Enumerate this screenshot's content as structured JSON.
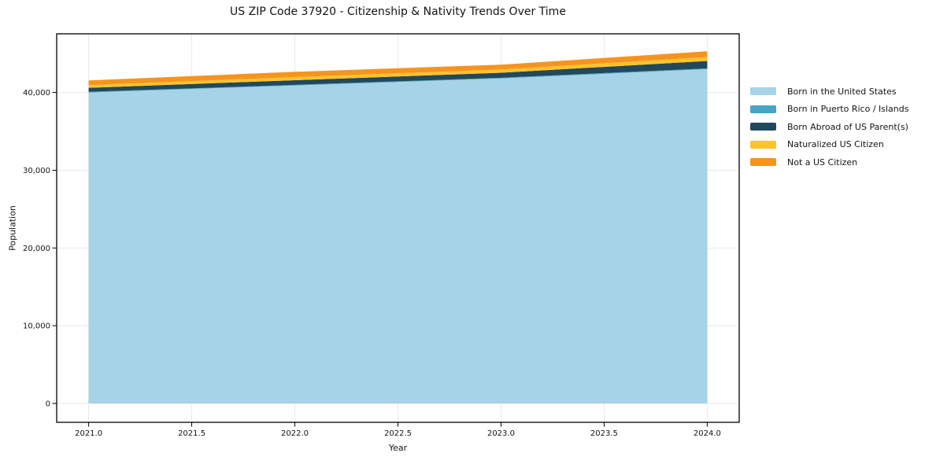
{
  "figure": {
    "background": "#ffffff"
  },
  "chart_data": {
    "type": "area",
    "stacked": true,
    "title": "US ZIP Code 37920 - Citizenship & Nativity Trends Over Time",
    "xlabel": "Year",
    "ylabel": "Population",
    "x": [
      2021,
      2022,
      2023,
      2024
    ],
    "series": [
      {
        "name": "Born in the United States",
        "color": "#a6d3e8",
        "values": [
          40000,
          40900,
          41800,
          43000
        ]
      },
      {
        "name": "Born in Puerto Rico / Islands",
        "color": "#46a5c5",
        "values": [
          80,
          80,
          90,
          100
        ]
      },
      {
        "name": "Born Abroad of US Parent(s)",
        "color": "#22485c",
        "values": [
          520,
          600,
          650,
          950
        ]
      },
      {
        "name": "Naturalized US Citizen",
        "color": "#fcc32d",
        "values": [
          350,
          400,
          420,
          500
        ]
      },
      {
        "name": "Not a US Citizen",
        "color": "#f6941e",
        "values": [
          600,
          680,
          620,
          750
        ]
      }
    ],
    "xticks": {
      "values": [
        2021.0,
        2021.5,
        2022.0,
        2022.5,
        2023.0,
        2023.5,
        2024.0
      ],
      "labels": [
        "2021.0",
        "2021.5",
        "2022.0",
        "2022.5",
        "2023.0",
        "2023.5",
        "2024.0"
      ]
    },
    "yticks": {
      "values": [
        0,
        10000,
        20000,
        30000,
        40000
      ],
      "labels": [
        "0",
        "10,000",
        "20,000",
        "30,000",
        "40,000"
      ]
    },
    "xlim": [
      2020.845,
      2024.155
    ],
    "ylim": [
      -2425,
      47545
    ],
    "grid": true,
    "legend_position": "right-outside",
    "legend_frame": false
  },
  "colors": {
    "grid": "#e7e7e7",
    "spine": "#000000",
    "tick": "#000000",
    "text": "#141414",
    "background": "#ffffff"
  }
}
